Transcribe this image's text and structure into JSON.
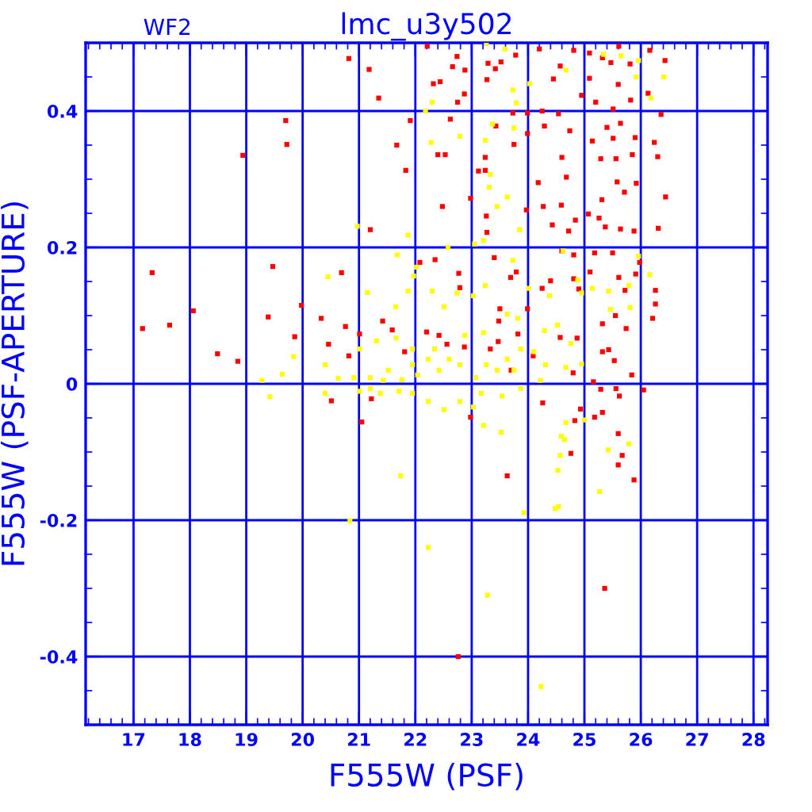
{
  "chart_data": {
    "type": "scatter",
    "title": "lmc_u3y502",
    "xlabel": "F555W (PSF)",
    "ylabel": "F555W (PSF-APERTURE)",
    "annotations": [
      "WF2"
    ],
    "xlim": [
      16.15,
      28.25
    ],
    "ylim": [
      -0.5,
      0.5
    ],
    "xticks": [
      17,
      18,
      19,
      20,
      21,
      22,
      23,
      24,
      25,
      26,
      27,
      28
    ],
    "yticks": [
      -0.4,
      -0.2,
      0,
      0.2,
      0.4
    ],
    "grid": true,
    "marker": "square",
    "series": [
      {
        "color": "#ff0000",
        "x": [
          20.82,
          21.18,
          21.35,
          21.91,
          21.67,
          21.83,
          21.2,
          22.21,
          22.32,
          22.44,
          22.66,
          22.74,
          22.88,
          22.75,
          22.87,
          22.62,
          22.4,
          22.53,
          22.48,
          23.29,
          23.42,
          23.52,
          23.27,
          23.73,
          23.99,
          24.25,
          24.54,
          23.75,
          23.24,
          23.24,
          23.12,
          23.26,
          22.98,
          23.27,
          23.43,
          24.29,
          23.99,
          23.97,
          24.18,
          24.27,
          24.43,
          24.72,
          24.84,
          24.59,
          24.68,
          24.6,
          24.74,
          24.81,
          24.57,
          24.45,
          24.2,
          23.78,
          25.09,
          25.32,
          25.47,
          25.61,
          25.81,
          25.6,
          25.82,
          25.51,
          25.64,
          25.4,
          25.14,
          25.51,
          25.9,
          25.85,
          25.56,
          25.29,
          25.58,
          25.92,
          25.71,
          25.31,
          25.26,
          25.37,
          25.64,
          25.88,
          25.07,
          24.95,
          25.2,
          26.3,
          26.44,
          26.31,
          26.24,
          26.13,
          26.36,
          26.43,
          26.16,
          25.09,
          22.35,
          22.08,
          22.77,
          22.79,
          23.4,
          23.69,
          23.79,
          23.5,
          23.48,
          23.82,
          23.99,
          24.25,
          24.4,
          24.6,
          24.81,
          24.81,
          24.9,
          25.1,
          25.18,
          25.5,
          25.61,
          25.72,
          25.91,
          25.98,
          26.26,
          26.26,
          26.21,
          25.55,
          25.32,
          25.32,
          25.43,
          25.53,
          25.74,
          25.16,
          25.29,
          25.56,
          25.62,
          25.32,
          25.18,
          25.6,
          25.67,
          25.6,
          25.88,
          25.84,
          26.05,
          24.93,
          24.76,
          24.83,
          23.63,
          22.98,
          24.26,
          24.09,
          23.33,
          23.47,
          22.87,
          22.56,
          22.42,
          22.2,
          21.81,
          21.59,
          21.42,
          20.76,
          20.33,
          20.46,
          21.01,
          20.69,
          19.98,
          19.86,
          21.05,
          21.22,
          20.51,
          20.82,
          23.7,
          24.8,
          24.57,
          24.87,
          17.16,
          17.33,
          17.64,
          18.06,
          18.49,
          18.94,
          19.47,
          19.39,
          19.7,
          19.72,
          18.85,
          25.36,
          22.76
        ],
        "values": [
          0.477,
          0.461,
          0.419,
          0.386,
          0.35,
          0.313,
          0.226,
          0.495,
          0.44,
          0.443,
          0.465,
          0.48,
          0.46,
          0.413,
          0.425,
          0.388,
          0.336,
          0.336,
          0.26,
          0.47,
          0.462,
          0.472,
          0.446,
          0.397,
          0.397,
          0.4,
          0.396,
          0.351,
          0.332,
          0.313,
          0.312,
          0.246,
          0.272,
          0.222,
          0.378,
          0.378,
          0.367,
          0.255,
          0.295,
          0.26,
          0.233,
          0.224,
          0.24,
          0.262,
          0.303,
          0.332,
          0.371,
          0.489,
          0.466,
          0.447,
          0.491,
          0.482,
          0.485,
          0.478,
          0.471,
          0.495,
          0.469,
          0.439,
          0.416,
          0.403,
          0.382,
          0.376,
          0.356,
          0.36,
          0.361,
          0.336,
          0.33,
          0.33,
          0.296,
          0.294,
          0.281,
          0.27,
          0.243,
          0.23,
          0.227,
          0.224,
          0.249,
          0.423,
          0.413,
          0.333,
          0.274,
          0.228,
          0.354,
          0.426,
          0.395,
          0.474,
          0.489,
          0.448,
          0.182,
          0.178,
          0.162,
          0.141,
          0.185,
          0.156,
          0.164,
          0.11,
          0.092,
          0.073,
          0.11,
          0.14,
          0.151,
          0.195,
          0.189,
          0.154,
          0.139,
          0.164,
          0.192,
          0.192,
          0.156,
          0.137,
          0.161,
          0.178,
          0.137,
          0.117,
          0.096,
          0.1,
          0.088,
          0.047,
          0.05,
          0.034,
          0.081,
          0.003,
          -0.008,
          -0.007,
          -0.018,
          -0.042,
          -0.049,
          -0.073,
          -0.105,
          -0.119,
          -0.141,
          0.013,
          -0.009,
          -0.037,
          -0.102,
          -0.054,
          -0.135,
          -0.049,
          -0.028,
          0.041,
          0.051,
          0.062,
          0.054,
          0.058,
          0.071,
          0.076,
          0.047,
          0.079,
          0.092,
          0.084,
          0.096,
          0.058,
          0.073,
          0.163,
          0.115,
          0.069,
          -0.056,
          -0.022,
          -0.025,
          0.041,
          0.02,
          0.016,
          0.068,
          0.067,
          0.081,
          0.163,
          0.086,
          0.107,
          0.044,
          0.335,
          0.172,
          0.098,
          0.386,
          0.351,
          0.033,
          -0.3,
          -0.4
        ]
      },
      {
        "color": "#ffff00",
        "x": [
          22.18,
          22.3,
          23.26,
          23.59,
          23.73,
          23.79,
          24.03,
          24.67,
          25.34,
          25.65,
          25.92,
          25.96,
          26.18,
          26.41,
          23.37,
          23.75,
          23.24,
          22.79,
          22.28,
          23.33,
          23.31,
          23.63,
          23.85,
          23.45,
          23.05,
          23.21,
          22.58,
          21.87,
          20.97,
          21.68,
          22.02,
          21.97,
          21.15,
          20.45,
          21.87,
          22.3,
          22.51,
          22.74,
          23.03,
          23.24,
          23.73,
          24.01,
          24.38,
          24.62,
          24.88,
          25.14,
          25.43,
          25.79,
          25.96,
          26.16,
          25.81,
          25.46,
          24.95,
          24.52,
          24.29,
          24.76,
          24.95,
          24.67,
          24.31,
          24.1,
          23.87,
          23.63,
          23.75,
          23.45,
          23.26,
          23.07,
          22.79,
          22.6,
          22.42,
          22.23,
          22.04,
          21.95,
          21.76,
          21.52,
          21.43,
          21.2,
          20.91,
          20.63,
          20.4,
          21.2,
          21.01,
          21.31,
          21.66,
          21.95,
          22.34,
          22.88,
          23.21,
          23.63,
          23.82,
          24.22,
          23.87,
          23.54,
          23.17,
          22.79,
          22.51,
          22.23,
          21.95,
          21.71,
          21.38,
          21.01,
          20.4,
          23.03,
          23.21,
          23.52,
          24.59,
          24.65,
          24.67,
          24.57,
          24.53,
          25.0,
          25.42,
          25.79,
          25.27,
          24.48,
          23.93,
          21.74,
          20.84,
          21.65,
          19.42,
          19.84,
          19.28,
          19.64,
          22.23,
          23.28,
          24.23,
          24.54
        ],
        "values": [
          0.4,
          0.413,
          0.499,
          0.491,
          0.431,
          0.412,
          0.44,
          0.46,
          0.483,
          0.481,
          0.45,
          0.474,
          0.419,
          0.45,
          0.381,
          0.375,
          0.357,
          0.363,
          0.354,
          0.307,
          0.288,
          0.274,
          0.226,
          0.26,
          0.205,
          0.21,
          0.2,
          0.218,
          0.231,
          0.189,
          0.171,
          0.158,
          0.134,
          0.157,
          0.136,
          0.136,
          0.113,
          0.133,
          0.129,
          0.144,
          0.181,
          0.14,
          0.129,
          0.195,
          0.152,
          0.14,
          0.136,
          0.144,
          0.187,
          0.16,
          0.112,
          0.109,
          0.133,
          0.086,
          0.078,
          0.059,
          0.029,
          0.024,
          0.028,
          0.047,
          0.051,
          0.036,
          0.02,
          0.02,
          0.028,
          0.009,
          0.028,
          0.036,
          0.02,
          0.036,
          0.013,
          0.028,
          0.006,
          0.02,
          0.005,
          0.009,
          0.009,
          0.008,
          0.028,
          -0.007,
          0.051,
          0.063,
          0.067,
          0.051,
          0.051,
          0.071,
          0.075,
          0.102,
          0.096,
          0.005,
          -0.007,
          -0.018,
          -0.014,
          -0.026,
          -0.038,
          -0.026,
          -0.014,
          -0.011,
          -0.014,
          -0.011,
          -0.014,
          -0.034,
          -0.061,
          -0.071,
          -0.077,
          -0.082,
          -0.057,
          -0.105,
          -0.127,
          -0.053,
          -0.097,
          -0.088,
          -0.158,
          -0.183,
          -0.189,
          -0.135,
          -0.201,
          0.113,
          -0.019,
          0.04,
          0.005,
          0.014,
          -0.24,
          -0.31,
          -0.444,
          -0.18
        ]
      }
    ]
  }
}
